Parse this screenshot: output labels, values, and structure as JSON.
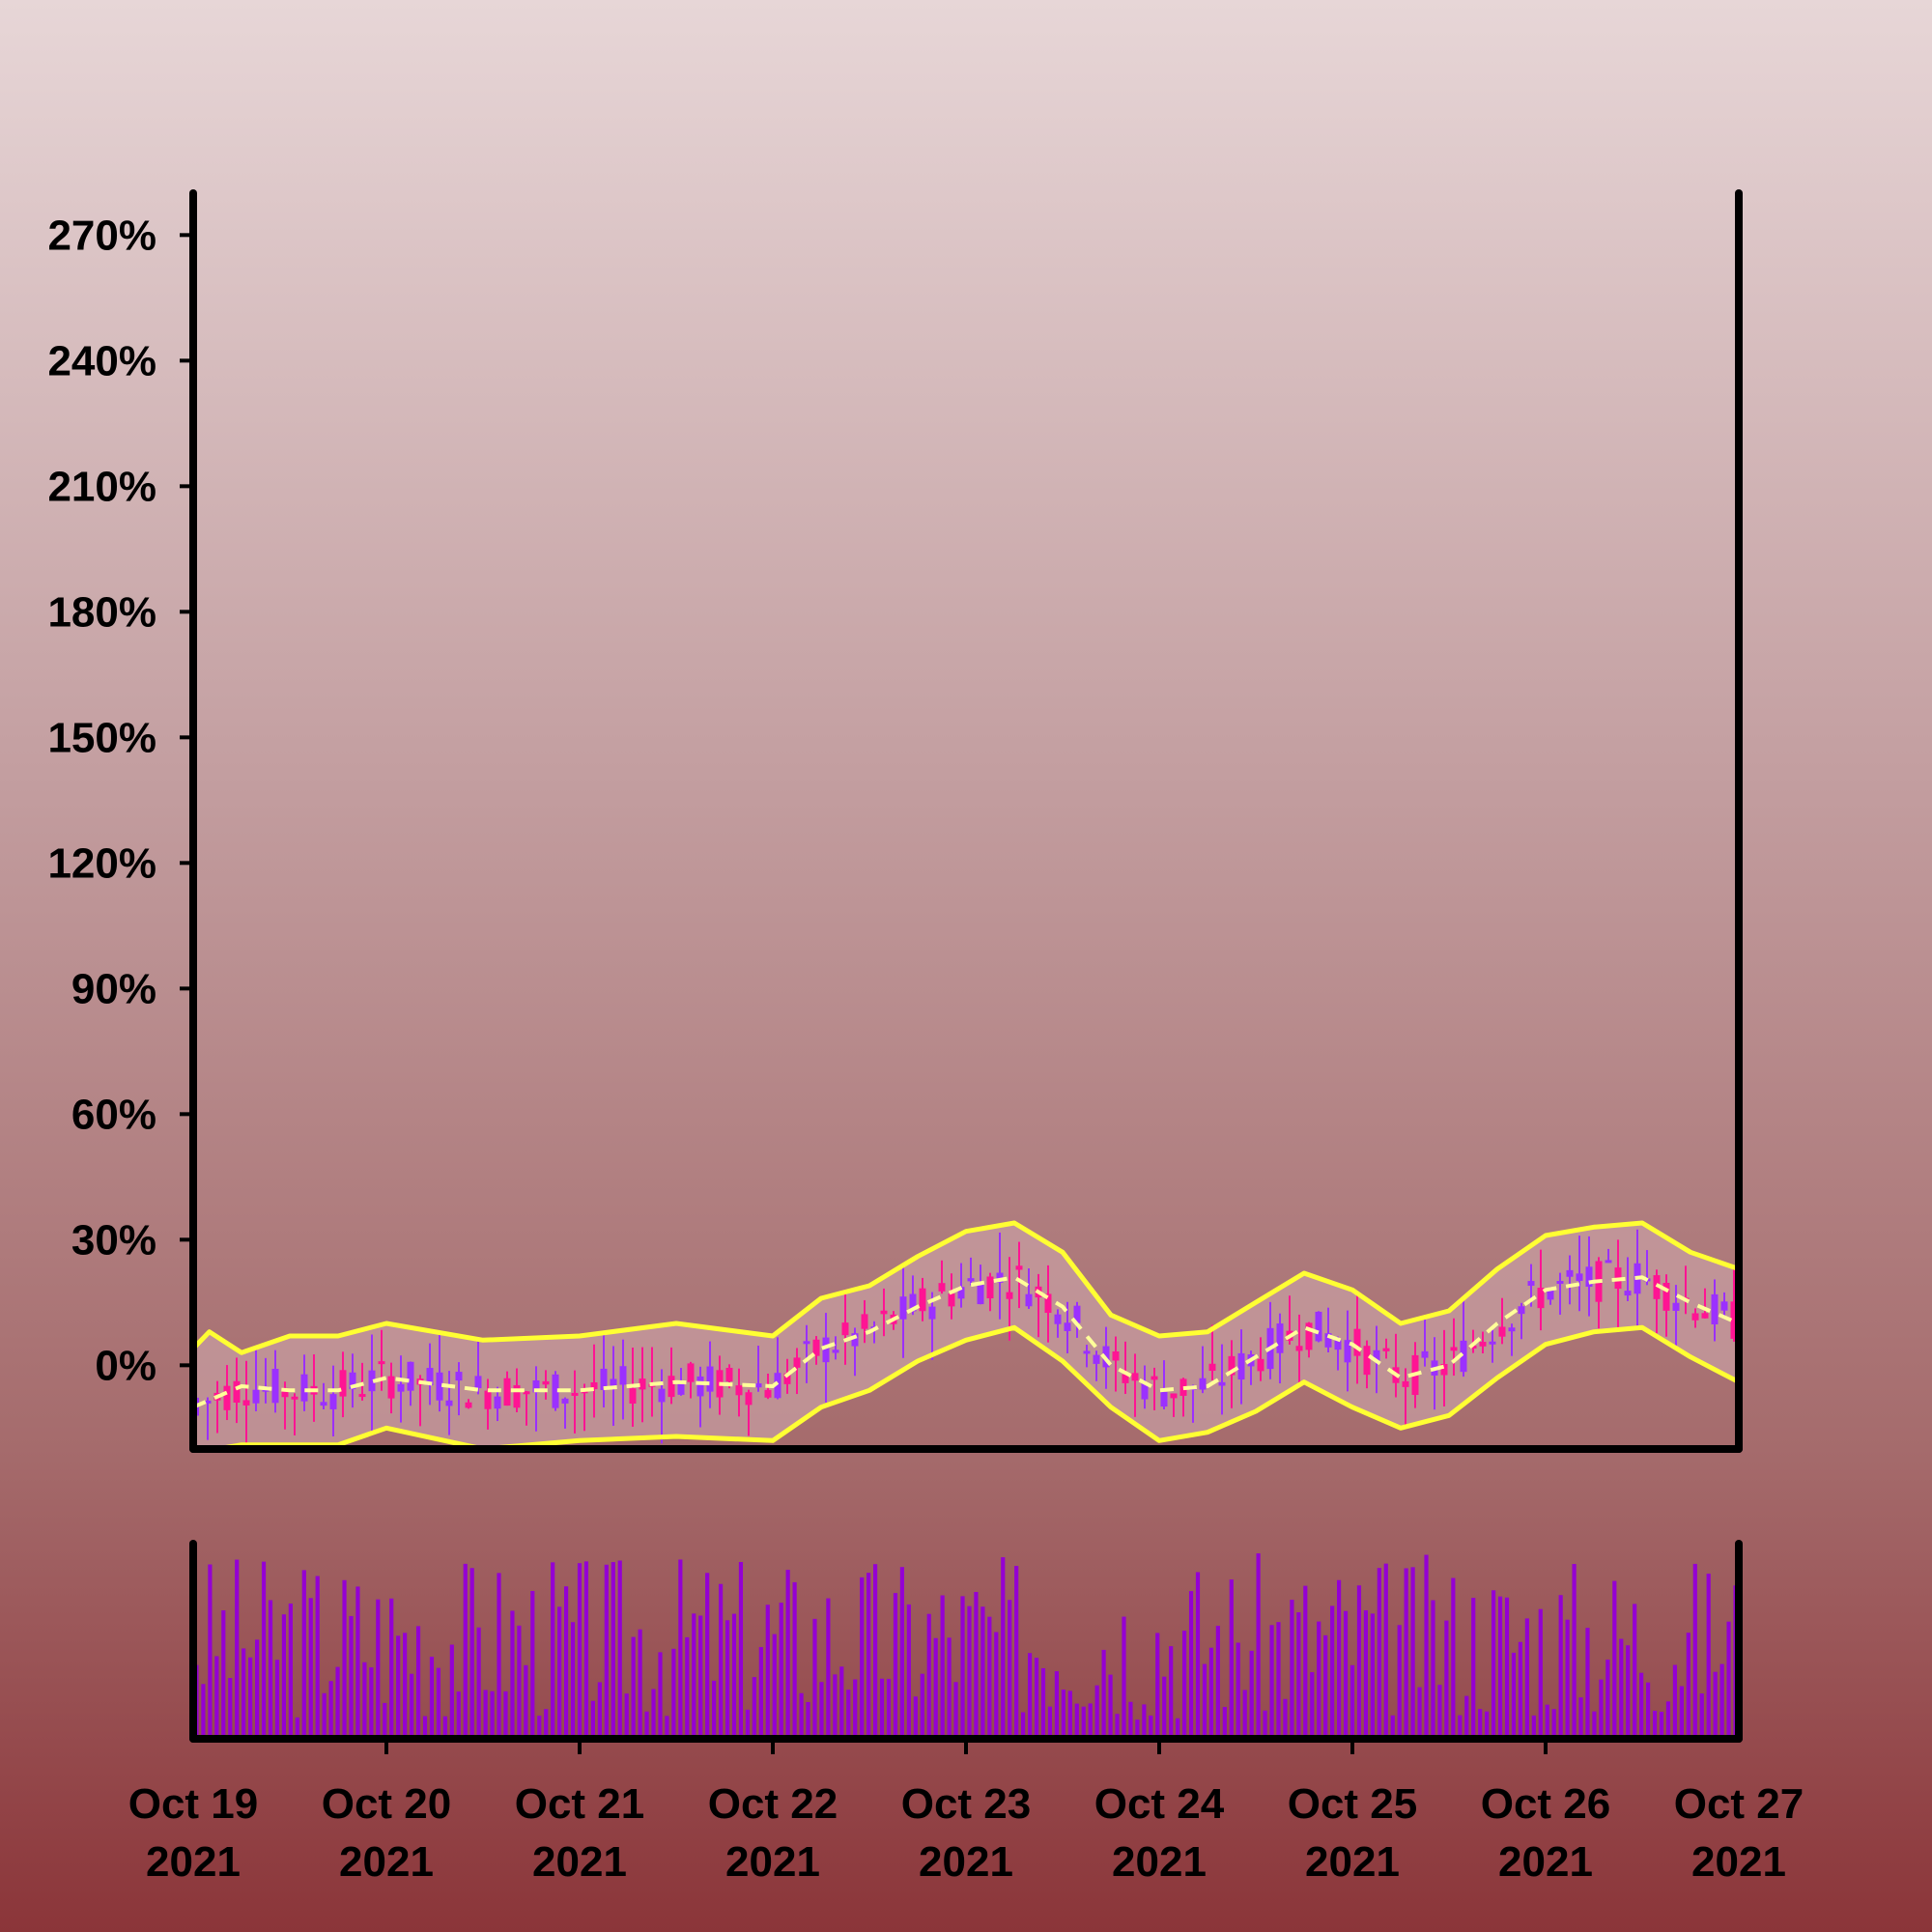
{
  "chart_data": {
    "type": "candlestick",
    "y_axis": {
      "min": -20,
      "max": 280,
      "ticks": [
        0,
        30,
        60,
        90,
        120,
        150,
        180,
        210,
        240,
        270
      ],
      "tick_labels": [
        "0%",
        "30%",
        "60%",
        "90%",
        "120%",
        "150%",
        "180%",
        "210%",
        "240%",
        "270%"
      ]
    },
    "x_axis": {
      "start": "2021-10-19",
      "end": "2021-10-27",
      "tick_labels": [
        [
          "Oct 19",
          "2021"
        ],
        [
          "Oct 20",
          "2021"
        ],
        [
          "Oct 21",
          "2021"
        ],
        [
          "Oct 22",
          "2021"
        ],
        [
          "Oct 23",
          "2021"
        ],
        [
          "Oct 24",
          "2021"
        ],
        [
          "Oct 25",
          "2021"
        ],
        [
          "Oct 26",
          "2021"
        ],
        [
          "Oct 27",
          "2021"
        ]
      ]
    },
    "bollinger_middle": [
      {
        "x": "2021-10-19T00:00",
        "y": -10
      },
      {
        "x": "2021-10-19T06:00",
        "y": -5
      },
      {
        "x": "2021-10-19T12:00",
        "y": -6
      },
      {
        "x": "2021-10-19T18:00",
        "y": -6
      },
      {
        "x": "2021-10-20T00:00",
        "y": -3
      },
      {
        "x": "2021-10-20T12:00",
        "y": -6
      },
      {
        "x": "2021-10-21T00:00",
        "y": -6
      },
      {
        "x": "2021-10-21T12:00",
        "y": -4
      },
      {
        "x": "2021-10-22T00:00",
        "y": -5
      },
      {
        "x": "2021-10-22T06:00",
        "y": 4
      },
      {
        "x": "2021-10-22T12:00",
        "y": 8
      },
      {
        "x": "2021-10-22T18:00",
        "y": 14
      },
      {
        "x": "2021-10-23T00:00",
        "y": 19
      },
      {
        "x": "2021-10-23T06:00",
        "y": 21
      },
      {
        "x": "2021-10-23T12:00",
        "y": 14
      },
      {
        "x": "2021-10-23T18:00",
        "y": 0
      },
      {
        "x": "2021-10-24T00:00",
        "y": -6
      },
      {
        "x": "2021-10-24T06:00",
        "y": -5
      },
      {
        "x": "2021-10-24T12:00",
        "y": 2
      },
      {
        "x": "2021-10-24T18:00",
        "y": 9
      },
      {
        "x": "2021-10-25T00:00",
        "y": 5
      },
      {
        "x": "2021-10-25T06:00",
        "y": -3
      },
      {
        "x": "2021-10-25T12:00",
        "y": 0
      },
      {
        "x": "2021-10-25T18:00",
        "y": 10
      },
      {
        "x": "2021-10-26T00:00",
        "y": 18
      },
      {
        "x": "2021-10-26T06:00",
        "y": 20
      },
      {
        "x": "2021-10-26T12:00",
        "y": 21
      },
      {
        "x": "2021-10-26T18:00",
        "y": 15
      },
      {
        "x": "2021-10-27T00:00",
        "y": 10
      }
    ],
    "bollinger_upper": [
      {
        "x": "2021-10-19T00:00",
        "y": 4
      },
      {
        "x": "2021-10-19T02:00",
        "y": 8
      },
      {
        "x": "2021-10-19T06:00",
        "y": 3
      },
      {
        "x": "2021-10-19T12:00",
        "y": 7
      },
      {
        "x": "2021-10-19T18:00",
        "y": 7
      },
      {
        "x": "2021-10-20T00:00",
        "y": 10
      },
      {
        "x": "2021-10-20T12:00",
        "y": 6
      },
      {
        "x": "2021-10-21T00:00",
        "y": 7
      },
      {
        "x": "2021-10-21T12:00",
        "y": 10
      },
      {
        "x": "2021-10-22T00:00",
        "y": 7
      },
      {
        "x": "2021-10-22T06:00",
        "y": 16
      },
      {
        "x": "2021-10-22T12:00",
        "y": 19
      },
      {
        "x": "2021-10-22T18:00",
        "y": 26
      },
      {
        "x": "2021-10-23T00:00",
        "y": 32
      },
      {
        "x": "2021-10-23T06:00",
        "y": 34
      },
      {
        "x": "2021-10-23T12:00",
        "y": 27
      },
      {
        "x": "2021-10-23T18:00",
        "y": 12
      },
      {
        "x": "2021-10-24T00:00",
        "y": 7
      },
      {
        "x": "2021-10-24T06:00",
        "y": 8
      },
      {
        "x": "2021-10-24T12:00",
        "y": 15
      },
      {
        "x": "2021-10-24T18:00",
        "y": 22
      },
      {
        "x": "2021-10-25T00:00",
        "y": 18
      },
      {
        "x": "2021-10-25T06:00",
        "y": 10
      },
      {
        "x": "2021-10-25T12:00",
        "y": 13
      },
      {
        "x": "2021-10-25T18:00",
        "y": 23
      },
      {
        "x": "2021-10-26T00:00",
        "y": 31
      },
      {
        "x": "2021-10-26T06:00",
        "y": 33
      },
      {
        "x": "2021-10-26T12:00",
        "y": 34
      },
      {
        "x": "2021-10-26T18:00",
        "y": 27
      },
      {
        "x": "2021-10-27T00:00",
        "y": 23
      }
    ],
    "bollinger_lower": [
      {
        "x": "2021-10-19T00:00",
        "y": -21
      },
      {
        "x": "2021-10-19T06:00",
        "y": -19
      },
      {
        "x": "2021-10-19T12:00",
        "y": -19
      },
      {
        "x": "2021-10-19T18:00",
        "y": -19
      },
      {
        "x": "2021-10-20T00:00",
        "y": -15
      },
      {
        "x": "2021-10-20T12:00",
        "y": -20
      },
      {
        "x": "2021-10-21T00:00",
        "y": -18
      },
      {
        "x": "2021-10-21T12:00",
        "y": -17
      },
      {
        "x": "2021-10-22T00:00",
        "y": -18
      },
      {
        "x": "2021-10-22T06:00",
        "y": -10
      },
      {
        "x": "2021-10-22T12:00",
        "y": -6
      },
      {
        "x": "2021-10-22T18:00",
        "y": 1
      },
      {
        "x": "2021-10-23T00:00",
        "y": 6
      },
      {
        "x": "2021-10-23T06:00",
        "y": 9
      },
      {
        "x": "2021-10-23T12:00",
        "y": 1
      },
      {
        "x": "2021-10-23T18:00",
        "y": -10
      },
      {
        "x": "2021-10-24T00:00",
        "y": -18
      },
      {
        "x": "2021-10-24T06:00",
        "y": -16
      },
      {
        "x": "2021-10-24T12:00",
        "y": -11
      },
      {
        "x": "2021-10-24T18:00",
        "y": -4
      },
      {
        "x": "2021-10-25T00:00",
        "y": -10
      },
      {
        "x": "2021-10-25T06:00",
        "y": -15
      },
      {
        "x": "2021-10-25T12:00",
        "y": -12
      },
      {
        "x": "2021-10-25T18:00",
        "y": -3
      },
      {
        "x": "2021-10-26T00:00",
        "y": 5
      },
      {
        "x": "2021-10-26T06:00",
        "y": 8
      },
      {
        "x": "2021-10-26T12:00",
        "y": 9
      },
      {
        "x": "2021-10-26T18:00",
        "y": 2
      },
      {
        "x": "2021-10-27T00:00",
        "y": -4
      }
    ],
    "colors": {
      "band_fill": "#c9a0a4",
      "bands": "#ffff33",
      "candle_up": "#9b30ff",
      "candle_down": "#ff1493",
      "volume": "#9400d3",
      "axis": "#000000"
    }
  }
}
